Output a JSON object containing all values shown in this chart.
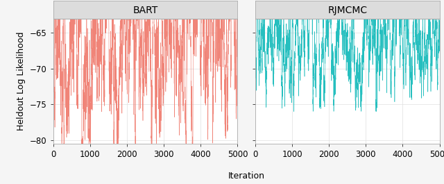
{
  "panels": [
    "BART",
    "RJMCMC"
  ],
  "bart_color": "#F08478",
  "rjmcmc_color": "#26BFBF",
  "n_iterations": 5000,
  "ylim": [
    -80.5,
    -63.0
  ],
  "yticks": [
    -80,
    -75,
    -70,
    -65
  ],
  "xticks": [
    0,
    1000,
    2000,
    3000,
    4000,
    5000
  ],
  "xlabel": "Iteration",
  "ylabel": "Heldout Log Likelihood",
  "panel_header_bg": "#DCDCDC",
  "plot_bg": "#FFFFFF",
  "outer_bg": "#F5F5F5",
  "bart_mean": -67.5,
  "bart_std": 3.5,
  "rjmcmc_mean": -66.0,
  "rjmcmc_std": 2.0,
  "linewidth": 0.4,
  "title_fontsize": 10,
  "label_fontsize": 9,
  "tick_fontsize": 8.5,
  "grid_color": "#E0E0E0"
}
